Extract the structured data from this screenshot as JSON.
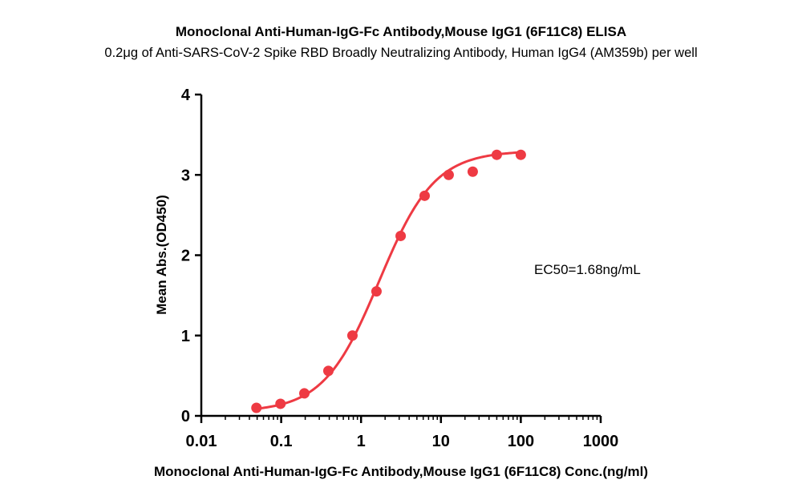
{
  "chart_data": {
    "type": "scatter",
    "title": "Monoclonal Anti-Human-IgG-Fc Antibody,Mouse IgG1 (6F11C8) ELISA",
    "subtitle": "0.2μg of Anti-SARS-CoV-2 Spike RBD Broadly Neutralizing Antibody, Human IgG4 (AM359b) per well",
    "xlabel": "Monoclonal Anti-Human-IgG-Fc Antibody,Mouse IgG1 (6F11C8) Conc.(ng/ml)",
    "ylabel": "Mean Abs.(OD450)",
    "x_scale": "log",
    "xlim": [
      0.01,
      1000
    ],
    "ylim": [
      0,
      4
    ],
    "x_ticks": [
      "0.01",
      "0.1",
      "1",
      "10",
      "100",
      "1000"
    ],
    "y_ticks": [
      "0",
      "1",
      "2",
      "3",
      "4"
    ],
    "annotation": "EC50=1.68ng/mL",
    "grid": false,
    "series": [
      {
        "color": "#ee3a43",
        "points": [
          {
            "x": 0.049,
            "y": 0.1
          },
          {
            "x": 0.098,
            "y": 0.15
          },
          {
            "x": 0.195,
            "y": 0.28
          },
          {
            "x": 0.39,
            "y": 0.56
          },
          {
            "x": 0.78,
            "y": 1.0
          },
          {
            "x": 1.56,
            "y": 1.55
          },
          {
            "x": 3.13,
            "y": 2.24
          },
          {
            "x": 6.25,
            "y": 2.74
          },
          {
            "x": 12.5,
            "y": 3.0
          },
          {
            "x": 25,
            "y": 3.04
          },
          {
            "x": 50,
            "y": 3.25
          },
          {
            "x": 100,
            "y": 3.25
          }
        ],
        "fit": {
          "type": "4PL",
          "bottom": 0.05,
          "top": 3.3,
          "ec50": 1.68,
          "hill": 1.25
        }
      }
    ]
  }
}
